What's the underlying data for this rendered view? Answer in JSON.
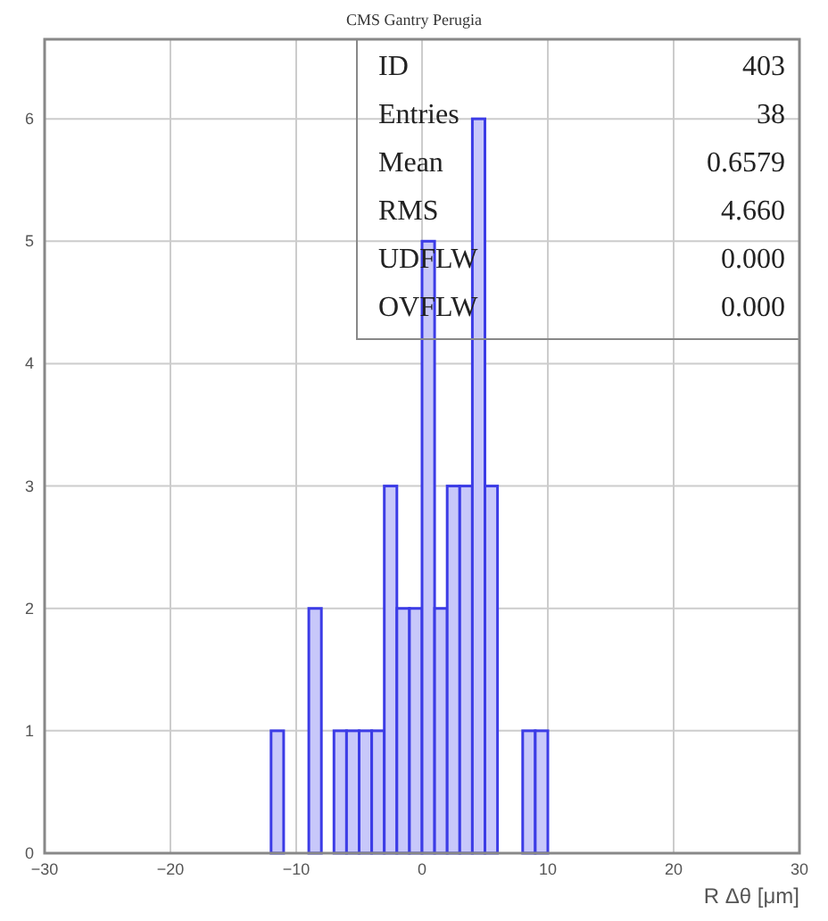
{
  "chart_data": {
    "type": "histogram",
    "title": "CMS Gantry Perugia",
    "xlabel": "R Δθ [μm]",
    "bins": [
      -30,
      -29,
      -28,
      -27,
      -26,
      -25,
      -24,
      -23,
      -22,
      -21,
      -20,
      -19,
      -18,
      -17,
      -16,
      -15,
      -14,
      -13,
      -12,
      -11,
      -10,
      -9,
      -8,
      -7,
      -6,
      -5,
      -4,
      -3,
      -2,
      -1,
      0,
      1,
      2,
      3,
      4,
      5,
      6,
      7,
      8,
      9,
      10,
      11,
      12,
      13,
      14,
      15,
      16,
      17,
      18,
      19,
      20,
      21,
      22,
      23,
      24,
      25,
      26,
      27,
      28,
      29,
      30
    ],
    "values": [
      0,
      0,
      0,
      0,
      0,
      0,
      0,
      0,
      0,
      0,
      0,
      0,
      0,
      0,
      0,
      0,
      0,
      0,
      1,
      0,
      0,
      2,
      0,
      1,
      1,
      1,
      1,
      3,
      2,
      2,
      5,
      2,
      3,
      3,
      6,
      3,
      0,
      0,
      1,
      1,
      0,
      0,
      0,
      0,
      0,
      0,
      0,
      0,
      0,
      0,
      0,
      0,
      0,
      0,
      0,
      0,
      0,
      0,
      0,
      0
    ],
    "color": "#c8c8fa",
    "xlim": [
      -30,
      30
    ],
    "xticks": [
      -30,
      -20,
      -10,
      0,
      10,
      20,
      30
    ],
    "ylim": [
      0,
      6.65
    ],
    "yticks": [
      0,
      1,
      2,
      3,
      4,
      5,
      6
    ],
    "grid": true,
    "annotations": [
      "ID",
      "403",
      "Entries",
      "38",
      "Mean",
      "0.6579",
      "RMS",
      "4.660",
      "UDFLW",
      "0.000",
      "OVFLW",
      "0.000"
    ]
  }
}
